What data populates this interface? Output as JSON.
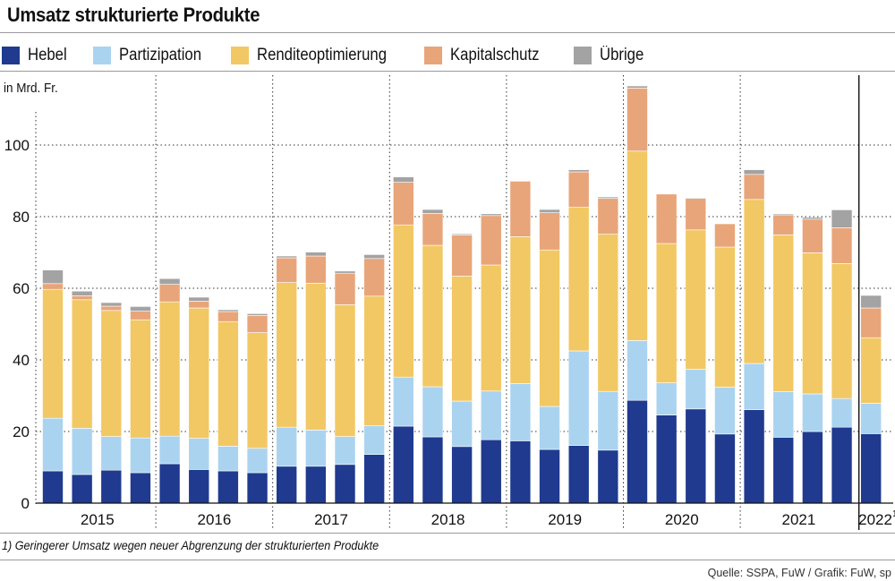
{
  "title": "Umsatz strukturierte Produkte",
  "unit_label": "in Mrd. Fr.",
  "footnote": "1) Geringerer Umsatz wegen neuer Abgrenzung der strukturierten Produkte",
  "source": "Quelle: SSPA, FuW / Grafik: FuW, sp",
  "legend": [
    {
      "label": "Hebel",
      "color": "#1f3a8f"
    },
    {
      "label": "Partizipation",
      "color": "#aad3f0"
    },
    {
      "label": "Renditeoptimierung",
      "color": "#f2c864"
    },
    {
      "label": "Kapitalschutz",
      "color": "#e8a57a"
    },
    {
      "label": "Übrige",
      "color": "#a3a3a3"
    }
  ],
  "chart_data": {
    "type": "bar",
    "stacked": true,
    "title": "Umsatz strukturierte Produkte",
    "ylabel": "in Mrd. Fr.",
    "ylim": [
      0,
      115
    ],
    "yticks": [
      0,
      20,
      40,
      60,
      80,
      100
    ],
    "grid": true,
    "years": [
      {
        "label": "2015",
        "quarters": 4
      },
      {
        "label": "2016",
        "quarters": 4
      },
      {
        "label": "2017",
        "quarters": 4
      },
      {
        "label": "2018",
        "quarters": 4
      },
      {
        "label": "2019",
        "quarters": 4
      },
      {
        "label": "2020",
        "quarters": 4
      },
      {
        "label": "2021",
        "quarters": 4
      },
      {
        "label": "2022",
        "quarters": 1,
        "footnote_mark": "1)"
      }
    ],
    "categories": [
      "2015 Q1",
      "2015 Q2",
      "2015 Q3",
      "2015 Q4",
      "2016 Q1",
      "2016 Q2",
      "2016 Q3",
      "2016 Q4",
      "2017 Q1",
      "2017 Q2",
      "2017 Q3",
      "2017 Q4",
      "2018 Q1",
      "2018 Q2",
      "2018 Q3",
      "2018 Q4",
      "2019 Q1",
      "2019 Q2",
      "2019 Q3",
      "2019 Q4",
      "2020 Q1",
      "2020 Q2",
      "2020 Q3",
      "2020 Q4",
      "2021 Q1",
      "2021 Q2",
      "2021 Q3",
      "2021 Q4",
      "2022 Q1"
    ],
    "series": [
      {
        "name": "Hebel",
        "color": "#1f3a8f",
        "values": [
          9,
          8,
          9.2,
          8.5,
          11,
          9.4,
          9,
          8.5,
          10.3,
          10.3,
          10.8,
          13.6,
          21.5,
          18.5,
          15.8,
          17.7,
          17.4,
          15,
          16.1,
          14.8,
          28.7,
          24.6,
          26.3,
          19.3,
          26.1,
          18.4,
          20,
          21.2,
          19.4
        ]
      },
      {
        "name": "Partizipation",
        "color": "#aad3f0",
        "values": [
          14.7,
          12.9,
          9.4,
          9.7,
          7.7,
          8.7,
          6.9,
          6.8,
          10.9,
          10.1,
          7.8,
          8,
          13.7,
          14,
          12.7,
          13.6,
          16,
          12,
          26.4,
          16.4,
          16.7,
          9,
          11.1,
          13.1,
          12.9,
          12.7,
          10.5,
          8,
          8.5
        ]
      },
      {
        "name": "Renditeoptimierung",
        "color": "#f2c864",
        "values": [
          36,
          35.9,
          35.2,
          33,
          37.5,
          36.4,
          34.8,
          32.3,
          40.4,
          41,
          36.8,
          36.2,
          42.5,
          39.5,
          34.9,
          35.2,
          41,
          43.7,
          40.1,
          43.9,
          52.9,
          38.9,
          38.9,
          39.1,
          45.8,
          43.8,
          39.4,
          37.7,
          18.3
        ]
      },
      {
        "name": "Kapitalschutz",
        "color": "#e8a57a",
        "values": [
          1.6,
          1.1,
          1.2,
          2.4,
          4.9,
          1.9,
          2.8,
          4.8,
          6.9,
          7.6,
          8.8,
          10.5,
          11.9,
          8.9,
          11.5,
          13.8,
          15.5,
          10.4,
          9.9,
          10,
          17.6,
          13.8,
          8.8,
          6.5,
          7,
          5.6,
          9.4,
          10,
          8.3
        ]
      },
      {
        "name": "Übrige",
        "color": "#a3a3a3",
        "values": [
          3.8,
          1.3,
          1,
          1.3,
          1.6,
          1.1,
          0.5,
          0.5,
          0.5,
          1.1,
          0.6,
          1.1,
          1.5,
          1.1,
          0.3,
          0.5,
          0,
          0.9,
          0.6,
          0.4,
          0.6,
          0,
          0.2,
          0,
          1.3,
          0.3,
          0.5,
          5,
          3.5
        ]
      }
    ]
  }
}
